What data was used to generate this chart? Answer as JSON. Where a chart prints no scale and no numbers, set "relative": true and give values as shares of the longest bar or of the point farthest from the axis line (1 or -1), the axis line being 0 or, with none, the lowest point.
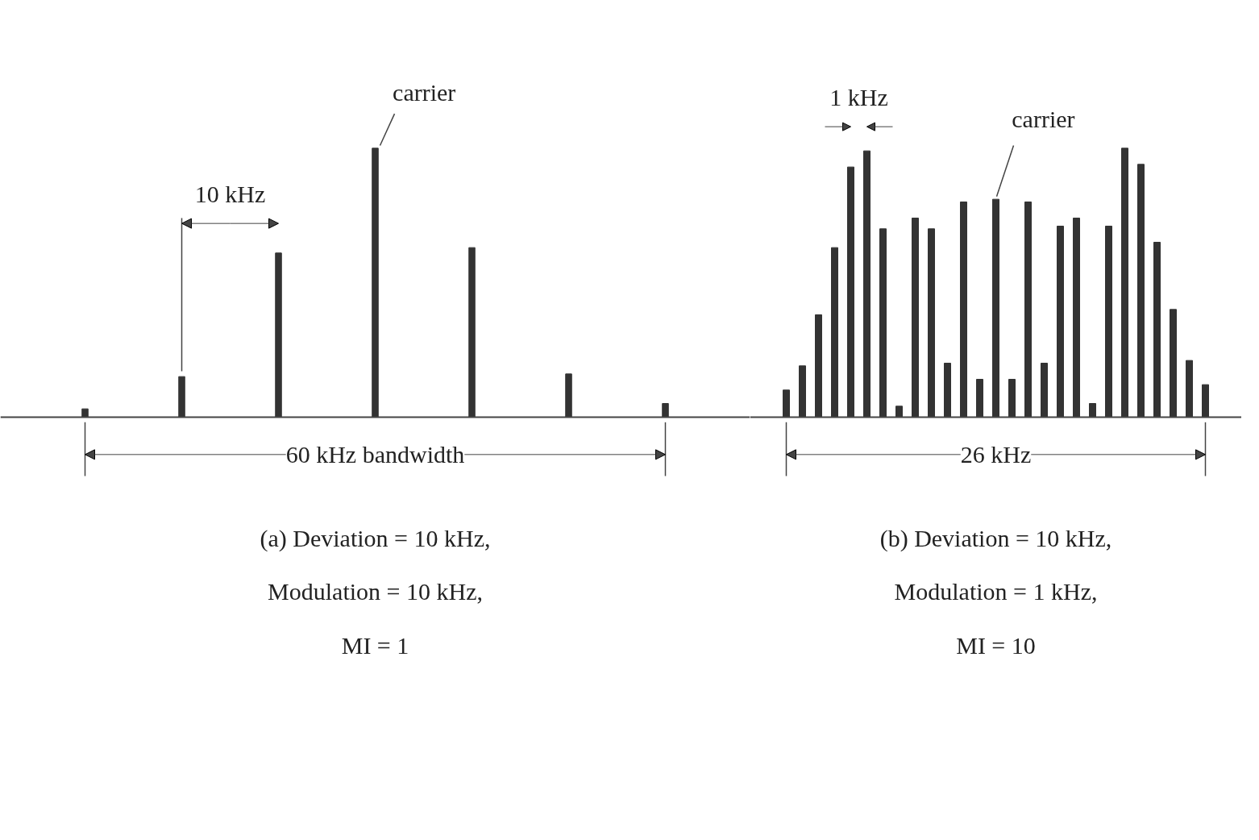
{
  "chart_data": [
    {
      "type": "bar",
      "relative": true,
      "categories": [
        null,
        null,
        null,
        null,
        null,
        null,
        null
      ],
      "values": [
        0.03,
        0.15,
        0.61,
        1,
        0.63,
        0.16,
        0.05
      ],
      "color": "#333333",
      "annotations": [
        "carrier",
        "10 kHz",
        "60 kHz bandwidth",
        "(a) Deviation = 10 kHz,",
        "Modulation = 10 kHz,",
        "MI = 1"
      ]
    },
    {
      "type": "bar",
      "relative": true,
      "categories": [
        null,
        null,
        null,
        null,
        null,
        null,
        null,
        null,
        null,
        null,
        null,
        null,
        null,
        null,
        null,
        null,
        null,
        null,
        null,
        null,
        null,
        null,
        null,
        null,
        null,
        null,
        null
      ],
      "values": [
        0.1,
        0.19,
        0.38,
        0.63,
        0.93,
        0.99,
        0.7,
        0.04,
        0.74,
        0.7,
        0.2,
        0.8,
        0.14,
        0.81,
        0.14,
        0.8,
        0.2,
        0.71,
        0.74,
        0.05,
        0.71,
        1,
        0.94,
        0.65,
        0.4,
        0.21,
        0.12
      ],
      "color": "#333333",
      "annotations": [
        "1 kHz",
        "carrier",
        "26 kHz",
        "(b) Deviation = 10 kHz,",
        "Modulation = 1 kHz,",
        "MI = 10"
      ]
    }
  ]
}
